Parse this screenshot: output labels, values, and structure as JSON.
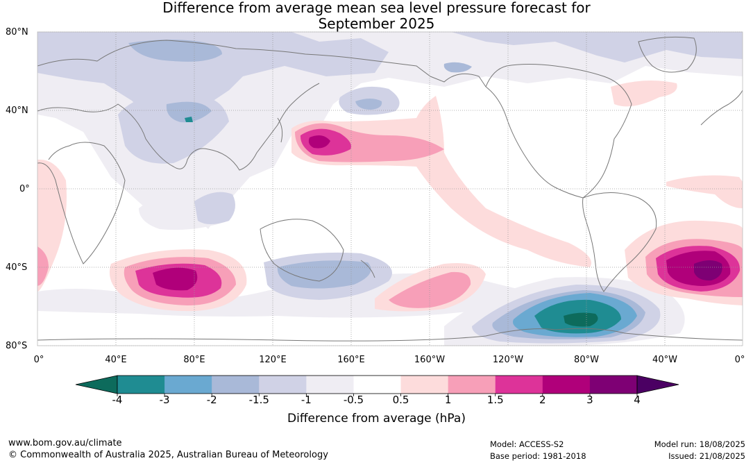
{
  "title_line1": "Difference from average mean sea level pressure forecast for",
  "title_line2": "September 2025",
  "lat_labels": [
    "80°N",
    "40°N",
    "0°",
    "40°S",
    "80°S"
  ],
  "lon_labels": [
    "0°",
    "40°E",
    "80°E",
    "120°E",
    "160°E",
    "160°W",
    "120°W",
    "80°W",
    "40°W",
    "0°"
  ],
  "colorbar": {
    "ticks": [
      "-4",
      "-3",
      "-2",
      "-1.5",
      "-1",
      "-0.5",
      "0.5",
      "1",
      "1.5",
      "2",
      "3",
      "4"
    ],
    "colors": [
      "#0d6b5c",
      "#1f8c92",
      "#6aa9d1",
      "#a9b9d8",
      "#d0d2e6",
      "#efedf3",
      "#ffffff",
      "#fddcdc",
      "#f79fb8",
      "#dd3399",
      "#b0007a",
      "#7e0074",
      "#4b0063"
    ],
    "label": "Difference from average (hPa)"
  },
  "footer": {
    "website": "www.bom.gov.au/climate",
    "copyright": "© Commonwealth of Australia 2025, Australian Bureau of Meteorology",
    "model": "Model: ACCESS-S2",
    "base_period": "Base period: 1981-2018",
    "model_run": "Model run: 18/08/2025",
    "issued": "Issued: 21/08/2025"
  }
}
